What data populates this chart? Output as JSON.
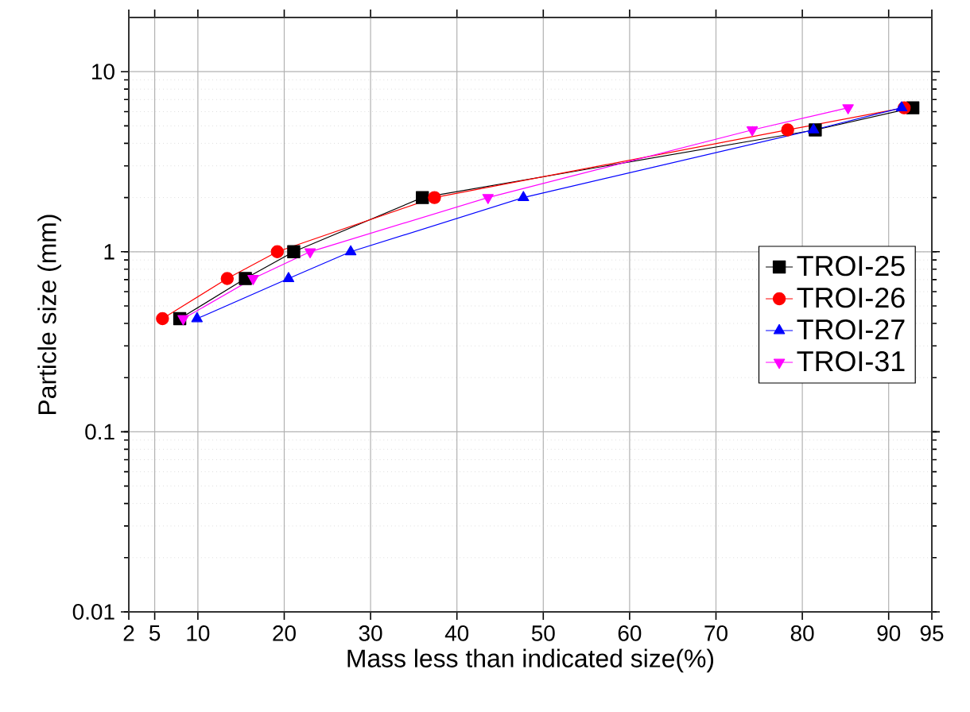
{
  "chart_data": {
    "type": "line",
    "xlabel": "Mass less than indicated size(%)",
    "ylabel": "Particle size (mm)",
    "log": "y",
    "grid": true,
    "legend": "center right",
    "xlim": [
      2,
      95
    ],
    "xticks": [
      2,
      5,
      10,
      20,
      30,
      40,
      50,
      60,
      70,
      80,
      90,
      95
    ],
    "ylim": [
      0.01,
      20
    ],
    "yticks": [
      0.01,
      0.1,
      1,
      10
    ],
    "series": [
      {
        "name": "TROI-25",
        "color": "#000000",
        "marker": "square",
        "x": [
          7.9,
          15.5,
          21.1,
          36,
          81.5,
          92.8
        ],
        "values": [
          0.425,
          0.71,
          1,
          2,
          4.75,
          6.3
        ]
      },
      {
        "name": "TROI-26",
        "color": "#ff0000",
        "marker": "circle",
        "x": [
          5.9,
          13.4,
          19.2,
          37.4,
          78.3,
          91.8
        ],
        "values": [
          0.425,
          0.71,
          1,
          2,
          4.75,
          6.3
        ]
      },
      {
        "name": "TROI-27",
        "color": "#0000ff",
        "marker": "triangle",
        "x": [
          9.9,
          20.5,
          27.7,
          47.7,
          81.3,
          91.5
        ],
        "values": [
          0.425,
          0.71,
          1,
          2,
          4.75,
          6.3
        ]
      },
      {
        "name": "TROI-31",
        "color": "#ff00ff",
        "marker": "triangle down",
        "x": [
          8.3,
          16.4,
          23,
          43.6,
          74.2,
          85.3
        ],
        "values": [
          0.425,
          0.71,
          1,
          2,
          4.75,
          6.3
        ]
      }
    ]
  }
}
